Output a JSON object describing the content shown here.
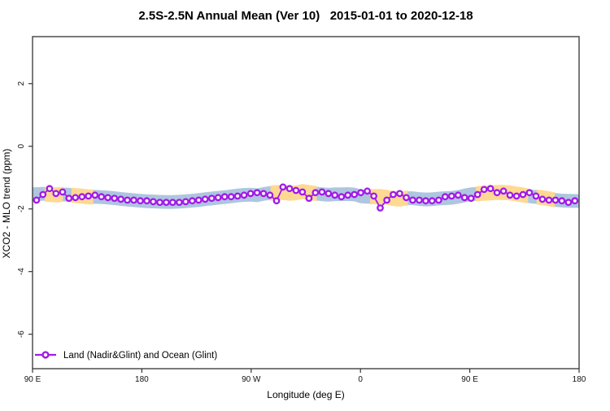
{
  "colors": {
    "series_purple": "#A21AE8",
    "band_blue": "#AEC6DF",
    "band_orange": "#FFD992",
    "axis_box": "#333333",
    "background": "#ffffff"
  },
  "chart_data": {
    "type": "line",
    "title": "2.5S-2.5N Annual Mean (Ver 10)   2015-01-01 to 2020-12-18",
    "xlabel": "Longitude (deg E)",
    "ylabel": "XCO2 - MLO trend (ppm)",
    "xlim": [
      90,
      540
    ],
    "ylim": [
      -7.1,
      3.5
    ],
    "grid": false,
    "x_ticks": [
      {
        "value": 90,
        "label": "90 E"
      },
      {
        "value": 180,
        "label": "180"
      },
      {
        "value": 270,
        "label": "90 W"
      },
      {
        "value": 360,
        "label": "0"
      },
      {
        "value": 450,
        "label": "90 E"
      },
      {
        "value": 540,
        "label": "180"
      }
    ],
    "y_ticks": [
      {
        "value": 2,
        "label": "2"
      },
      {
        "value": 0,
        "label": "0"
      },
      {
        "value": -2,
        "label": "-2"
      },
      {
        "value": -4,
        "label": "-4"
      },
      {
        "value": -6,
        "label": "-6"
      }
    ],
    "legend": {
      "label": "Land (Nadir&Glint) and Ocean (Glint)",
      "position": "bottom-left",
      "marker": "open-circle-on-line"
    },
    "band": {
      "description": "shaded spread band following the curve",
      "half_width": 0.22,
      "orange_half_width": 0.24,
      "orange_ranges": [
        [
          100,
          115
        ],
        [
          122,
          140
        ],
        [
          286,
          324
        ],
        [
          368,
          399
        ],
        [
          455,
          498
        ],
        [
          505,
          520
        ]
      ]
    },
    "series": [
      {
        "name": "Land (Nadir&Glint) and Ocean (Glint)",
        "marker": "open-circle",
        "points": [
          [
            93.3,
            -1.72
          ],
          [
            98.6,
            -1.54
          ],
          [
            104.0,
            -1.35
          ],
          [
            109.3,
            -1.51
          ],
          [
            114.7,
            -1.46
          ],
          [
            120.0,
            -1.66
          ],
          [
            125.3,
            -1.64
          ],
          [
            130.7,
            -1.61
          ],
          [
            136.0,
            -1.59
          ],
          [
            141.4,
            -1.56
          ],
          [
            146.7,
            -1.61
          ],
          [
            152.0,
            -1.64
          ],
          [
            157.4,
            -1.66
          ],
          [
            162.7,
            -1.69
          ],
          [
            168.1,
            -1.72
          ],
          [
            173.4,
            -1.72
          ],
          [
            178.7,
            -1.74
          ],
          [
            184.1,
            -1.74
          ],
          [
            189.4,
            -1.77
          ],
          [
            194.8,
            -1.79
          ],
          [
            200.1,
            -1.79
          ],
          [
            205.4,
            -1.79
          ],
          [
            210.8,
            -1.79
          ],
          [
            216.1,
            -1.77
          ],
          [
            221.5,
            -1.74
          ],
          [
            226.8,
            -1.72
          ],
          [
            232.1,
            -1.69
          ],
          [
            237.5,
            -1.66
          ],
          [
            242.8,
            -1.64
          ],
          [
            248.2,
            -1.61
          ],
          [
            253.5,
            -1.61
          ],
          [
            258.8,
            -1.59
          ],
          [
            264.2,
            -1.56
          ],
          [
            269.5,
            -1.51
          ],
          [
            274.9,
            -1.48
          ],
          [
            280.2,
            -1.51
          ],
          [
            285.5,
            -1.56
          ],
          [
            290.9,
            -1.74
          ],
          [
            296.2,
            -1.3
          ],
          [
            301.6,
            -1.35
          ],
          [
            306.9,
            -1.41
          ],
          [
            312.2,
            -1.46
          ],
          [
            317.6,
            -1.66
          ],
          [
            322.9,
            -1.48
          ],
          [
            328.3,
            -1.46
          ],
          [
            333.6,
            -1.51
          ],
          [
            338.9,
            -1.56
          ],
          [
            344.3,
            -1.61
          ],
          [
            349.6,
            -1.56
          ],
          [
            355.0,
            -1.54
          ],
          [
            360.3,
            -1.48
          ],
          [
            365.6,
            -1.43
          ],
          [
            371.0,
            -1.59
          ],
          [
            376.3,
            -1.97
          ],
          [
            381.7,
            -1.72
          ],
          [
            387.0,
            -1.54
          ],
          [
            392.3,
            -1.51
          ],
          [
            397.7,
            -1.64
          ],
          [
            403.0,
            -1.72
          ],
          [
            408.4,
            -1.72
          ],
          [
            413.7,
            -1.74
          ],
          [
            419.0,
            -1.74
          ],
          [
            424.4,
            -1.72
          ],
          [
            429.7,
            -1.61
          ],
          [
            435.1,
            -1.59
          ],
          [
            440.4,
            -1.56
          ],
          [
            445.7,
            -1.64
          ],
          [
            451.1,
            -1.66
          ],
          [
            456.4,
            -1.54
          ],
          [
            461.8,
            -1.38
          ],
          [
            467.1,
            -1.35
          ],
          [
            472.4,
            -1.48
          ],
          [
            477.8,
            -1.43
          ],
          [
            483.1,
            -1.56
          ],
          [
            488.5,
            -1.59
          ],
          [
            493.8,
            -1.54
          ],
          [
            499.1,
            -1.48
          ],
          [
            504.5,
            -1.59
          ],
          [
            509.8,
            -1.69
          ],
          [
            515.2,
            -1.72
          ],
          [
            520.5,
            -1.72
          ],
          [
            525.8,
            -1.74
          ],
          [
            531.2,
            -1.79
          ],
          [
            536.5,
            -1.74
          ]
        ]
      }
    ]
  }
}
